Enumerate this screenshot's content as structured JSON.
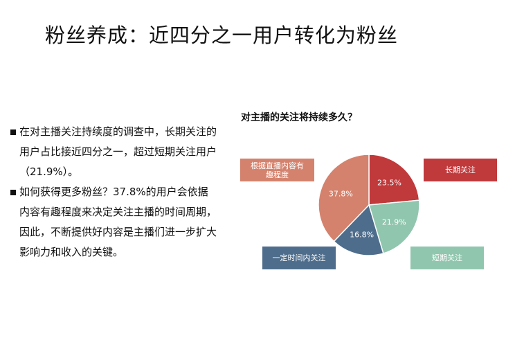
{
  "slide": {
    "title": "粉丝养成：近四分之一用户转化为粉丝",
    "bullets": [
      "在对主播关注持续度的调查中，长期关注的用户占比接近四分之一，超过短期关注用户（21.9%）。",
      "如何获得更多粉丝？37.8%的用户会依据内容有趣程度来决定关注主播的时间周期，因此，不断提供好内容是主播们进一步扩大影响力和收入的关键。"
    ]
  },
  "chart_data": {
    "type": "pie",
    "title": "对主播的关注将持续多久？",
    "slices": [
      {
        "label": "长期关注",
        "value": 23.5,
        "value_label": "23.5%",
        "color": "#c0393b"
      },
      {
        "label": "短期关注",
        "value": 21.9,
        "value_label": "21.9%",
        "color": "#91c6ae"
      },
      {
        "label": "一定时间内关注",
        "value": 16.8,
        "value_label": "16.8%",
        "color": "#4e6d8c"
      },
      {
        "label": "根据直播内容有趣程度",
        "value": 37.8,
        "value_label": "37.8%",
        "color": "#d4826d"
      }
    ],
    "start_angle_deg": 0,
    "direction": "clockwise"
  }
}
